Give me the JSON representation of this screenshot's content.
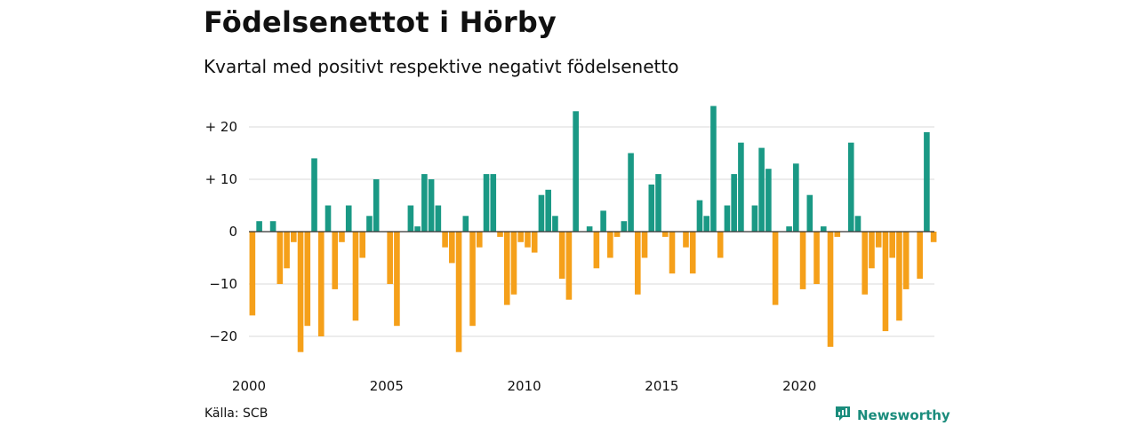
{
  "header": {
    "title": "Födelsenettot i Hörby",
    "subtitle": "Kvartal med positivt respektive negativt födelsenetto"
  },
  "footer": {
    "source": "Källa: SCB",
    "brand": "Newsworthy",
    "brand_icon": "newsworthy-logo-icon"
  },
  "colors": {
    "positive": "#1a9985",
    "negative": "#f5a01a",
    "grid": "#d9d9d9",
    "zero_line": "#333333"
  },
  "chart_data": {
    "type": "bar",
    "title": "Födelsenettot i Hörby",
    "subtitle": "Kvartal med positivt respektive negativt födelsenetto",
    "xlabel": "",
    "ylabel": "",
    "x_start": "2000 Q1",
    "frequency": "quarter",
    "ylim": [
      -25,
      25
    ],
    "y_ticks": [
      {
        "value": 20,
        "label": "+ 20"
      },
      {
        "value": 10,
        "label": "+ 10"
      },
      {
        "value": 0,
        "label": "0"
      },
      {
        "value": -10,
        "label": "−10"
      },
      {
        "value": -20,
        "label": "−20"
      }
    ],
    "x_ticks": [
      "2000",
      "2005",
      "2010",
      "2015",
      "2020"
    ],
    "grid": true,
    "values": [
      -16,
      2,
      0,
      2,
      -10,
      -7,
      -2,
      -23,
      -18,
      14,
      -20,
      5,
      -11,
      -2,
      5,
      -17,
      -5,
      3,
      10,
      0,
      -10,
      -18,
      0,
      5,
      1,
      11,
      10,
      5,
      -3,
      -6,
      -23,
      3,
      -18,
      -3,
      11,
      11,
      -1,
      -14,
      -12,
      -2,
      -3,
      -4,
      7,
      8,
      3,
      -9,
      -13,
      23,
      0,
      1,
      -7,
      4,
      -5,
      -1,
      2,
      15,
      -12,
      -5,
      9,
      11,
      -1,
      -8,
      0,
      -3,
      -8,
      6,
      3,
      24,
      -5,
      5,
      11,
      17,
      0,
      5,
      16,
      12,
      -14,
      0,
      1,
      13,
      -11,
      7,
      -10,
      1,
      -22,
      -1,
      0,
      17,
      3,
      -12,
      -7,
      -3,
      -19,
      -5,
      -17,
      -11,
      0,
      -9,
      19,
      -2
    ]
  }
}
